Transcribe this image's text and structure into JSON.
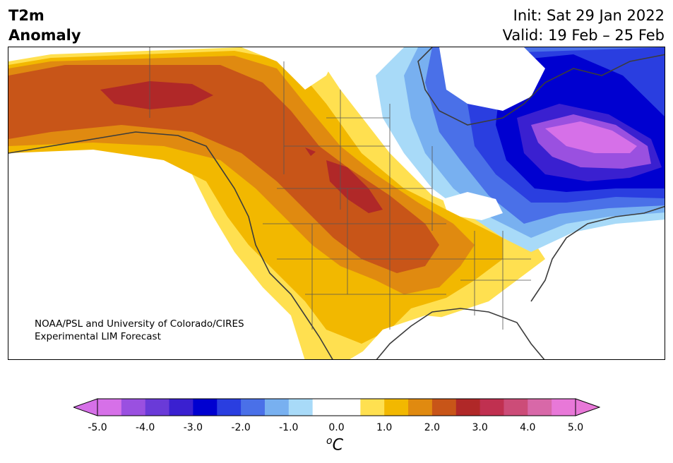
{
  "title": {
    "line1": "T2m",
    "line2": "Anomaly"
  },
  "forecast": {
    "init": "Init: Sat 29 Jan 2022",
    "valid": "Valid: 19 Feb – 25 Feb"
  },
  "credit": {
    "line1": "NOAA/PSL and University of Colorado/CIRES",
    "line2": "Experimental LIM Forecast"
  },
  "colorbar": {
    "ticks": [
      "-5.0",
      "-4.0",
      "-3.0",
      "-2.0",
      "-1.0",
      "0.0",
      "1.0",
      "2.0",
      "3.0",
      "4.0",
      "5.0"
    ],
    "unit_symbol": "o",
    "unit_letter": "C",
    "under_color": "#d670e8",
    "over_color": "#e878d8",
    "colors": [
      "#d670e8",
      "#9a50e0",
      "#6a3ad8",
      "#3a20d0",
      "#0000d0",
      "#2a3ee0",
      "#4a70e8",
      "#78b0f0",
      "#a8daf8",
      "#ffffff",
      "#ffffff",
      "#ffe050",
      "#f2b800",
      "#e08a10",
      "#c85518",
      "#b02828",
      "#c03050",
      "#cc4c78",
      "#d868a8",
      "#e878d8"
    ]
  },
  "colors": {
    "land_outline": "#3c3c3c",
    "state_line": "#555555"
  }
}
